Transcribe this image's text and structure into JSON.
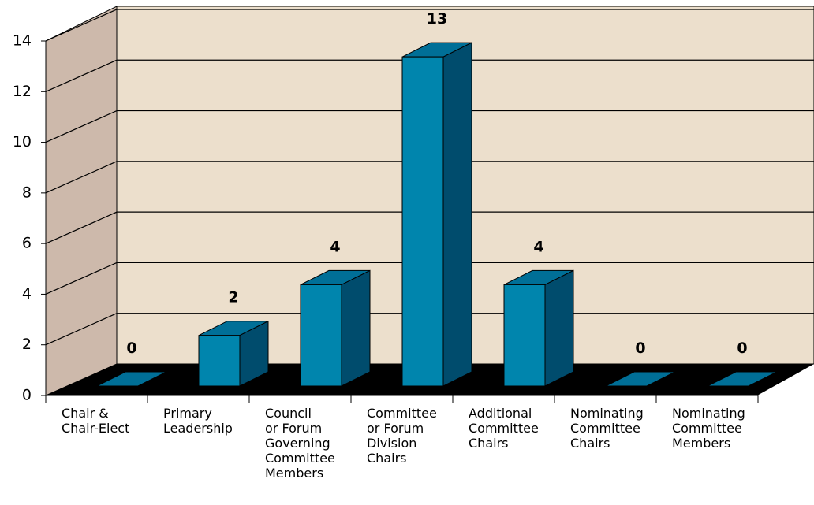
{
  "chart_data": {
    "type": "bar3d",
    "categories": [
      [
        "Chair &",
        "Chair-Elect"
      ],
      [
        "Primary",
        "Leadership"
      ],
      [
        "Council",
        "or Forum",
        "Governing",
        "Committee",
        "Members"
      ],
      [
        "Committee",
        "or Forum",
        "Division",
        "Chairs"
      ],
      [
        "Additional",
        "Committee",
        "Chairs"
      ],
      [
        "Nominating",
        "Committee",
        "Chairs"
      ],
      [
        "Nominating",
        "Committee",
        "Members"
      ]
    ],
    "values": [
      0,
      2,
      4,
      13,
      4,
      0,
      0
    ],
    "color": "#0085ad",
    "ylim": [
      0,
      14
    ],
    "yticks": [
      0,
      2,
      4,
      6,
      8,
      10,
      12,
      14
    ],
    "grid": true
  }
}
